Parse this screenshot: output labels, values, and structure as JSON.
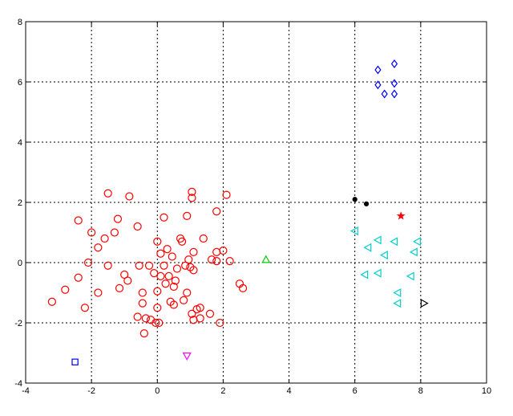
{
  "chart_data": {
    "type": "scatter",
    "title": "",
    "xlabel": "",
    "ylabel": "",
    "xlim": [
      -4,
      10
    ],
    "ylim": [
      -4,
      8
    ],
    "grid": true,
    "x_ticks": [
      "-4",
      "-2",
      "0",
      "2",
      "4",
      "6",
      "8",
      "10"
    ],
    "y_ticks": [
      "-4",
      "-2",
      "0",
      "2",
      "4",
      "6",
      "8"
    ],
    "series": [
      {
        "marker": "circle",
        "color": "#ff0000",
        "points": [
          [
            -3.2,
            -1.3
          ],
          [
            -2.8,
            -0.9
          ],
          [
            -2.4,
            1.4
          ],
          [
            -2.4,
            -0.5
          ],
          [
            -2.2,
            -1.5
          ],
          [
            -2.1,
            0.0
          ],
          [
            -2.0,
            1.0
          ],
          [
            -1.8,
            -1.0
          ],
          [
            -1.8,
            0.5
          ],
          [
            -1.6,
            0.8
          ],
          [
            -1.5,
            2.3
          ],
          [
            -1.5,
            -0.1
          ],
          [
            -1.3,
            1.0
          ],
          [
            -1.2,
            1.45
          ],
          [
            -1.15,
            -0.85
          ],
          [
            -1.0,
            -0.4
          ],
          [
            -0.9,
            -0.6
          ],
          [
            -0.85,
            2.2
          ],
          [
            -0.6,
            -1.8
          ],
          [
            -0.6,
            1.2
          ],
          [
            -0.55,
            -0.1
          ],
          [
            -0.45,
            -1.0
          ],
          [
            -0.45,
            -1.35
          ],
          [
            -0.4,
            -2.35
          ],
          [
            -0.35,
            -1.85
          ],
          [
            -0.25,
            -0.1
          ],
          [
            -0.2,
            -1.9
          ],
          [
            -0.1,
            -0.35
          ],
          [
            -0.05,
            -2.0
          ],
          [
            0.0,
            -1.5
          ],
          [
            0.0,
            -0.95
          ],
          [
            0.0,
            0.7
          ],
          [
            0.05,
            -2.0
          ],
          [
            0.1,
            0.3
          ],
          [
            0.1,
            -0.45
          ],
          [
            0.2,
            -0.1
          ],
          [
            0.2,
            1.5
          ],
          [
            0.25,
            -0.7
          ],
          [
            0.3,
            0.45
          ],
          [
            0.35,
            -0.45
          ],
          [
            0.4,
            -1.3
          ],
          [
            0.45,
            0.2
          ],
          [
            0.5,
            -1.4
          ],
          [
            0.5,
            -0.8
          ],
          [
            0.55,
            -0.6
          ],
          [
            0.6,
            -0.2
          ],
          [
            0.7,
            0.8
          ],
          [
            0.75,
            0.7
          ],
          [
            0.8,
            -1.25
          ],
          [
            0.85,
            -0.1
          ],
          [
            0.9,
            -1.0
          ],
          [
            0.9,
            1.55
          ],
          [
            0.95,
            0.1
          ],
          [
            1.0,
            -0.15
          ],
          [
            1.05,
            2.35
          ],
          [
            1.05,
            2.15
          ],
          [
            1.05,
            -1.7
          ],
          [
            1.1,
            -0.25
          ],
          [
            1.1,
            0.35
          ],
          [
            1.1,
            -1.9
          ],
          [
            1.2,
            -1.55
          ],
          [
            1.3,
            -1.85
          ],
          [
            1.3,
            -1.5
          ],
          [
            1.4,
            0.8
          ],
          [
            1.6,
            -1.7
          ],
          [
            1.65,
            0.1
          ],
          [
            1.8,
            0.35
          ],
          [
            1.8,
            0.05
          ],
          [
            1.8,
            1.7
          ],
          [
            1.9,
            -2.0
          ],
          [
            2.0,
            0.4
          ],
          [
            2.1,
            2.25
          ],
          [
            2.2,
            0.05
          ],
          [
            2.5,
            -0.7
          ],
          [
            2.6,
            -0.85
          ]
        ]
      },
      {
        "marker": "square",
        "color": "#0000ff",
        "points": [
          [
            -2.5,
            -3.3
          ]
        ]
      },
      {
        "marker": "triangle-down",
        "color": "#ff00ff",
        "points": [
          [
            0.9,
            -3.1
          ]
        ]
      },
      {
        "marker": "triangle-up",
        "color": "#00cc00",
        "points": [
          [
            3.3,
            0.1
          ]
        ]
      },
      {
        "marker": "dot",
        "color": "#000000",
        "points": [
          [
            6.0,
            2.1
          ],
          [
            6.35,
            1.95
          ]
        ]
      },
      {
        "marker": "star",
        "color": "#ff0000",
        "points": [
          [
            7.4,
            1.55
          ]
        ]
      },
      {
        "marker": "diamond",
        "color": "#0000ff",
        "points": [
          [
            6.7,
            6.4
          ],
          [
            7.2,
            6.6
          ],
          [
            6.7,
            5.9
          ],
          [
            6.9,
            5.6
          ],
          [
            7.2,
            5.95
          ],
          [
            7.2,
            5.6
          ]
        ]
      },
      {
        "marker": "triangle-left",
        "color": "#00cccc",
        "points": [
          [
            6.0,
            1.05
          ],
          [
            6.4,
            0.5
          ],
          [
            6.7,
            0.75
          ],
          [
            6.9,
            0.25
          ],
          [
            7.2,
            0.7
          ],
          [
            7.9,
            0.7
          ],
          [
            7.8,
            0.35
          ],
          [
            6.3,
            -0.4
          ],
          [
            6.7,
            -0.35
          ],
          [
            7.7,
            -0.45
          ],
          [
            7.3,
            -1.0
          ],
          [
            7.3,
            -1.35
          ]
        ]
      },
      {
        "marker": "triangle-right",
        "color": "#000000",
        "points": [
          [
            8.1,
            -1.35
          ]
        ]
      }
    ]
  }
}
